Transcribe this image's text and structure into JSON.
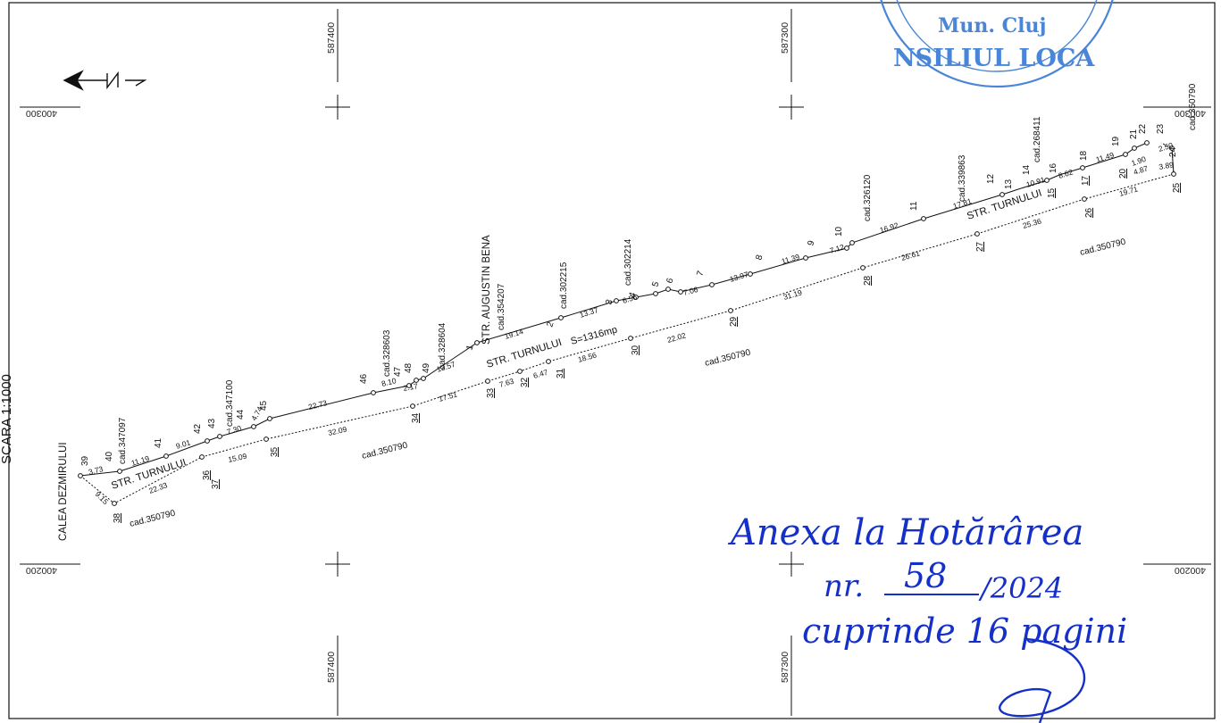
{
  "scale_label": "SCARA 1:1000",
  "coords": {
    "y_a": "587400",
    "y_b": "587300",
    "x_top": "400300",
    "x_bottom": "400200"
  },
  "streets": {
    "turnului": "STR. TURNULUI",
    "augustin_bena": "STR. AUGUSTIN BENA",
    "dezmirului": "CALEA DEZMIRULUI"
  },
  "area": "S=1316mp",
  "cadastral": {
    "c347097": "cad.347097",
    "c347100": "cad.347100",
    "c328603": "cad.328603",
    "c328604": "cad.328604",
    "c354207": "cad.354207",
    "c302215": "cad.302215",
    "c302214": "cad.302214",
    "c326120": "cad.326120",
    "c339863": "cad.339863",
    "c268411": "cad.268411",
    "c350790": "cad.350790"
  },
  "stamp": {
    "line1": "Mun. Cluj",
    "line2": "NSILIUL LOCA"
  },
  "handwriting": {
    "line1": "Anexa la Hotărârea",
    "nr_prefix": "nr.",
    "nr_value": "58",
    "nr_year": "/2024",
    "line3": "cuprinde 16 pagini"
  },
  "north_symbol": "north-arrow-icon",
  "colors": {
    "ink": "#111111",
    "handwriting": "#1530c8",
    "stamp": "#4a86d8"
  }
}
